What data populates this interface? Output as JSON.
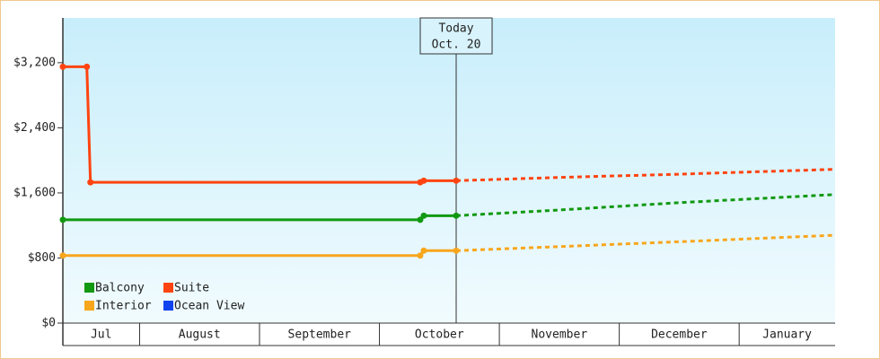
{
  "chart_data": {
    "type": "line",
    "categories": [
      "Jul",
      "August",
      "September",
      "October",
      "November",
      "December",
      "January"
    ],
    "xticks": [
      1,
      2,
      3,
      4,
      5,
      6
    ],
    "xlim": [
      0.36,
      6.8
    ],
    "ylim": [
      0,
      3750
    ],
    "yticks": [
      {
        "value": 0,
        "label": "$0"
      },
      {
        "value": 800,
        "label": "$800"
      },
      {
        "value": 1600,
        "label": "$1,600"
      },
      {
        "value": 2400,
        "label": "$2,400"
      },
      {
        "value": 3200,
        "label": "$3,200"
      }
    ],
    "today": {
      "x": 3.64,
      "title": "Today",
      "date": "Oct. 20"
    },
    "legend": "bottom-left",
    "series": [
      {
        "name": "Balcony",
        "color": "#119911",
        "x": [
          0.36,
          3.34,
          3.37,
          3.64,
          4.5,
          5.5,
          6.8
        ],
        "values": [
          1270,
          1270,
          1320,
          1320,
          1390,
          1480,
          1580
        ]
      },
      {
        "name": "Suite",
        "color": "#ff4411",
        "x": [
          0.36,
          0.56,
          0.59,
          3.34,
          3.37,
          3.64,
          4.5,
          5.5,
          6.8
        ],
        "values": [
          3150,
          3150,
          1730,
          1730,
          1750,
          1750,
          1790,
          1830,
          1890
        ]
      },
      {
        "name": "Interior",
        "color": "#f8a61c",
        "x": [
          0.36,
          3.34,
          3.37,
          3.64,
          4.5,
          5.5,
          6.8
        ],
        "values": [
          830,
          830,
          890,
          890,
          940,
          1000,
          1080
        ]
      },
      {
        "name": "Ocean View",
        "color": "#1144ee",
        "x": [],
        "values": []
      }
    ]
  }
}
